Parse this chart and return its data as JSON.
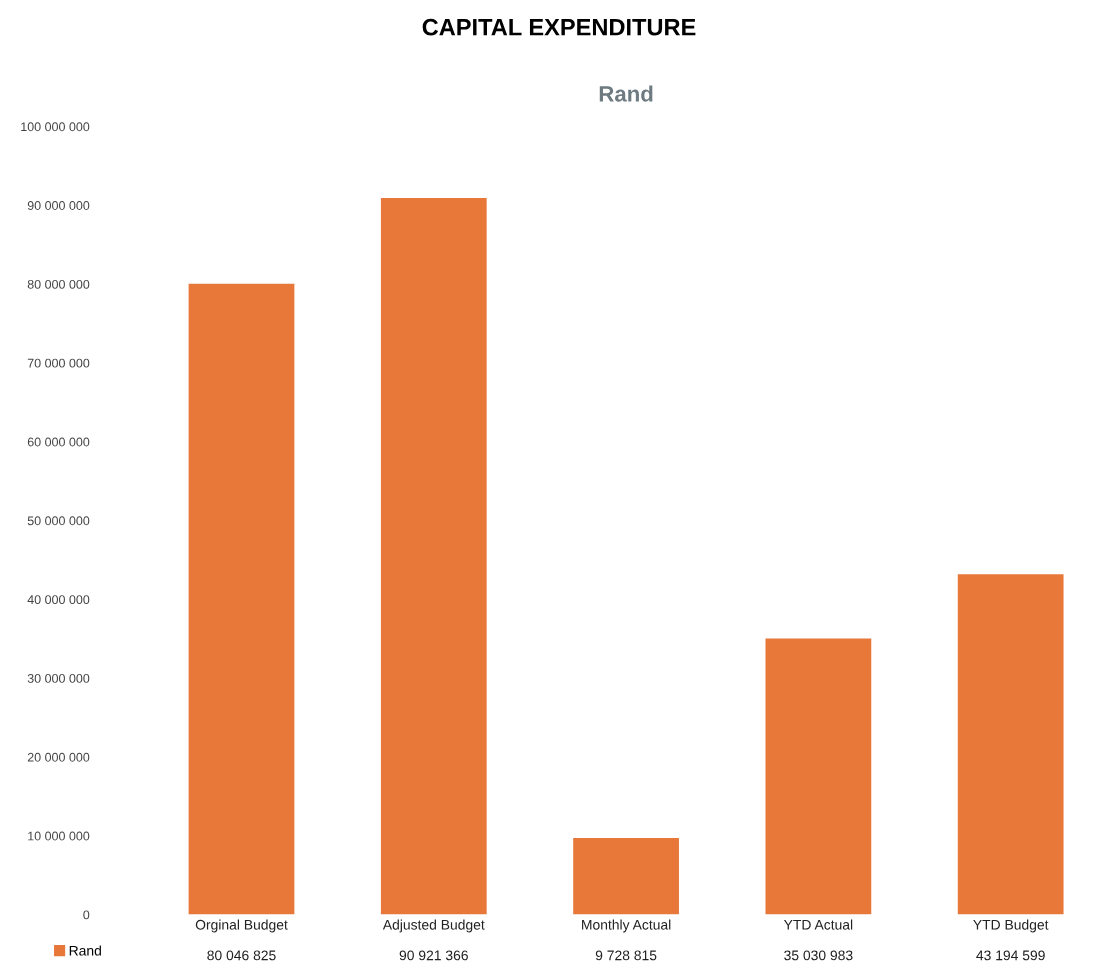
{
  "chart_data": {
    "type": "bar",
    "title": "CAPITAL EXPENDITURE",
    "subtitle": "Rand",
    "categories": [
      "Orginal Budget",
      "Adjusted Budget",
      "Monthly Actual",
      "YTD Actual",
      "YTD Budget"
    ],
    "series": [
      {
        "name": "Rand",
        "color": "#e8773a",
        "values": [
          80046825,
          90921366,
          9728815,
          35030983,
          43194599
        ],
        "value_labels": [
          "80 046 825",
          "90 921 366",
          "9 728 815",
          "35 030 983",
          "43 194 599"
        ]
      }
    ],
    "ylim": [
      0,
      100000000
    ],
    "yticks": [
      {
        "value": 0,
        "label": "0"
      },
      {
        "value": 10000000,
        "label": "10 000 000"
      },
      {
        "value": 20000000,
        "label": "20 000 000"
      },
      {
        "value": 30000000,
        "label": "30 000 000"
      },
      {
        "value": 40000000,
        "label": "40 000 000"
      },
      {
        "value": 50000000,
        "label": "50 000 000"
      },
      {
        "value": 60000000,
        "label": "60 000 000"
      },
      {
        "value": 70000000,
        "label": "70 000 000"
      },
      {
        "value": 80000000,
        "label": "80 000 000"
      },
      {
        "value": 90000000,
        "label": "90 000 000"
      },
      {
        "value": 100000000,
        "label": "100 000 000"
      }
    ],
    "grid": false,
    "legend": "bottom left"
  }
}
